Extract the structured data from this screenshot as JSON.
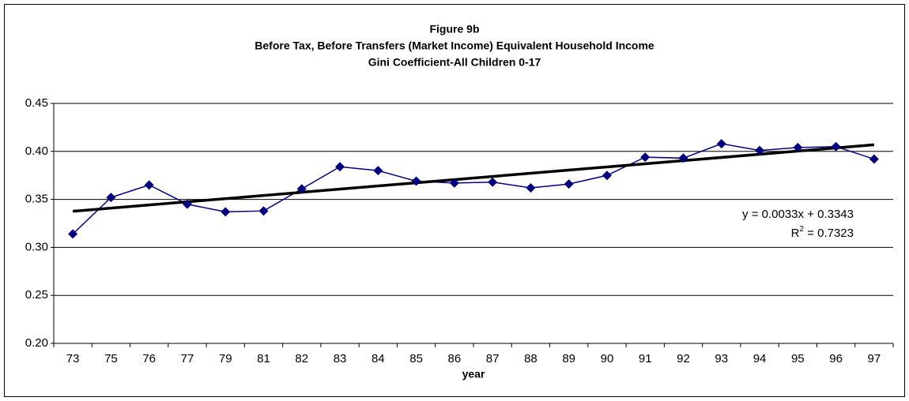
{
  "chart_data": {
    "type": "line",
    "title": "Figure 9b",
    "subtitle": "Before Tax, Before Transfers (Market Income) Equivalent Household Income",
    "subtitle2": "Gini Coefficient-All Children 0-17",
    "x_label": "year",
    "categories": [
      "73",
      "75",
      "76",
      "77",
      "79",
      "81",
      "82",
      "83",
      "84",
      "85",
      "86",
      "87",
      "88",
      "89",
      "90",
      "91",
      "92",
      "93",
      "94",
      "95",
      "96",
      "97"
    ],
    "series": [
      {
        "color": "#000080",
        "values": [
          0.314,
          0.352,
          0.365,
          0.345,
          0.337,
          0.338,
          0.361,
          0.384,
          0.38,
          0.369,
          0.367,
          0.368,
          0.362,
          0.366,
          0.375,
          0.394,
          0.393,
          0.408,
          0.401,
          0.404,
          0.405,
          0.392
        ]
      }
    ],
    "trendline": {
      "color": "#000000",
      "slope": 0.0033,
      "intercept": 0.3343,
      "equation": "y = 0.0033x + 0.3343",
      "r2_name": "R",
      "r2_exponent": "2",
      "r2_rest": " = 0.7323"
    },
    "ylim": [
      0.2,
      0.45
    ],
    "yticks": [
      {
        "value": 0.2,
        "label": "0.20"
      },
      {
        "value": 0.25,
        "label": "0.25"
      },
      {
        "value": 0.3,
        "label": "0.30"
      },
      {
        "value": 0.35,
        "label": "0.35"
      },
      {
        "value": 0.4,
        "label": "0.40"
      },
      {
        "value": 0.45,
        "label": "0.45"
      }
    ],
    "grid": true
  }
}
